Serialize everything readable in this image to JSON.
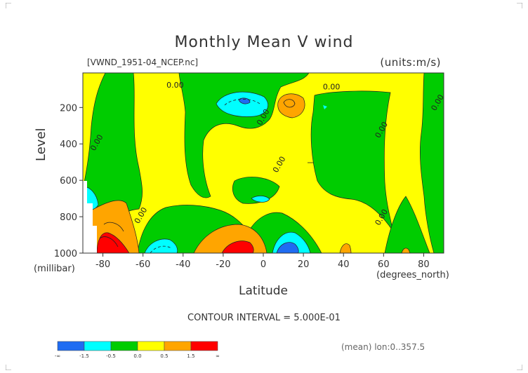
{
  "title": "Monthly Mean V wind",
  "dataset_label": "[VWND_1951-04_NCEP.nc]",
  "units_label": "(units:m/s)",
  "contour_interval": "CONTOUR INTERVAL = 5.000E-01",
  "stat_label": "(mean) lon:0..357.5",
  "colors": {
    "below_-1.5": "#1f6cf2",
    "-1.5_to_-0.5": "#00ffff",
    "-0.5_to_0.0": "#00cc00",
    "0.0_to_0.5": "#ffff00",
    "0.5_to_1.5": "#ffa500",
    "above_1.5": "#ff0000"
  },
  "chart_data": {
    "type": "heatmap",
    "title": "Monthly Mean V wind",
    "xlabel": "Latitude",
    "xunit": "(degrees_north)",
    "ylabel": "Level",
    "yunit": "(millibar)",
    "xlim": [
      -90,
      90
    ],
    "ylim": [
      1000,
      10
    ],
    "x_ticks": [
      -80,
      -60,
      -40,
      -20,
      0,
      20,
      40,
      60,
      80
    ],
    "y_ticks": [
      200,
      400,
      600,
      800,
      1000
    ],
    "contour_labels": [
      {
        "x": -44,
        "y": 90,
        "text": "0.00"
      },
      {
        "x": 34,
        "y": 100,
        "text": "0.00"
      },
      {
        "x": 88,
        "y": 180,
        "text": "0.00"
      },
      {
        "x": 1,
        "y": 260,
        "text": "0.00"
      },
      {
        "x": 60,
        "y": 330,
        "text": "0.00"
      },
      {
        "x": -82,
        "y": 400,
        "text": "0.00"
      },
      {
        "x": 9,
        "y": 520,
        "text": "0.00"
      },
      {
        "x": -60,
        "y": 800,
        "text": "0.00"
      },
      {
        "x": 60,
        "y": 810,
        "text": "0.00"
      }
    ],
    "legend": {
      "colors": [
        "#1f6cf2",
        "#00ffff",
        "#00cc00",
        "#ffff00",
        "#ffa500",
        "#ff0000"
      ],
      "labels": [
        "-∞",
        "-1.5",
        "-0.5",
        "0.0",
        "0.5",
        "1.5",
        "∞"
      ]
    }
  }
}
